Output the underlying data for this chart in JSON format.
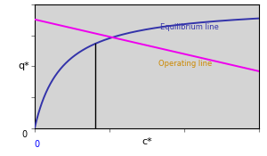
{
  "xlabel": "c*",
  "ylabel": "q*",
  "background_color": "#d4d4d4",
  "eq_line_color": "#3333aa",
  "op_line_color": "#ee00ee",
  "eq_label": "Equilibrium line",
  "op_label": "Operating line",
  "eq_label_color": "#3333aa",
  "op_label_color": "#cc8800",
  "vline_x": 0.27,
  "xlim": [
    0,
    1.0
  ],
  "ylim": [
    0,
    1.0
  ],
  "eq_K": 8.0,
  "op_slope": -0.42,
  "op_intercept": 0.88,
  "figsize": [
    3.0,
    1.75
  ],
  "dpi": 100
}
